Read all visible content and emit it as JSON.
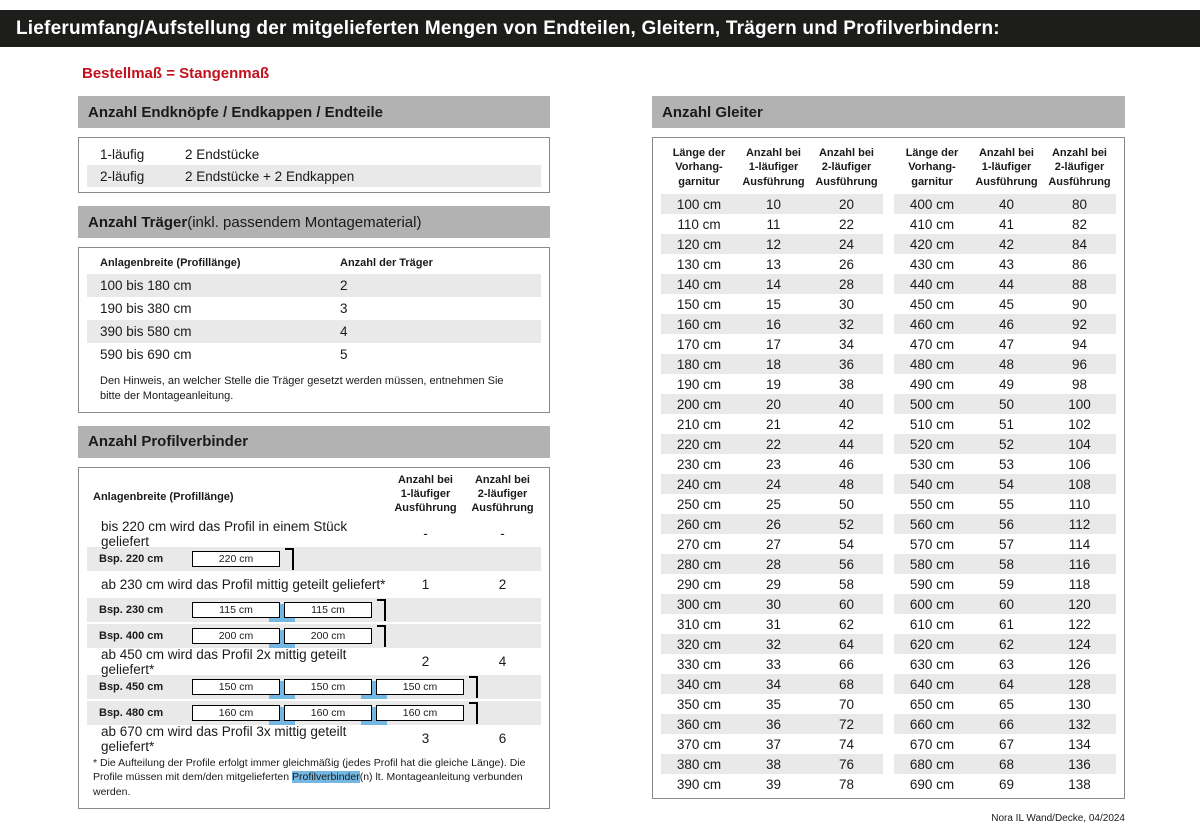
{
  "header": {
    "title": "Lieferumfang/Aufstellung der mitgelieferten Mengen von Endteilen, Gleitern, Trägern und Profilverbindern:",
    "subtitle": "Bestellmaß = Stangenmaß"
  },
  "endteile": {
    "title": "Anzahl Endknöpfe / Endkappen / Endteile",
    "rows": [
      {
        "label": "1-läufig",
        "value": "2 Endstücke"
      },
      {
        "label": "2-läufig",
        "value": "2 Endstücke + 2 Endkappen"
      }
    ]
  },
  "traeger": {
    "title_bold": "Anzahl Träger",
    "title_rest": " (inkl. passendem Montagematerial)",
    "col_width": "Anlagenbreite (Profillänge)",
    "col_count": "Anzahl der Träger",
    "rows": [
      {
        "range": "100 bis 180 cm",
        "count": "2"
      },
      {
        "range": "190 bis 380 cm",
        "count": "3"
      },
      {
        "range": "390 bis 580 cm",
        "count": "4"
      },
      {
        "range": "590 bis 690 cm",
        "count": "5"
      }
    ],
    "note": "Den Hinweis, an welcher Stelle die Träger gesetzt werden müssen, entnehmen Sie bitte der Montageanleitung."
  },
  "profilverbinder": {
    "title": "Anzahl Profilverbinder",
    "col_width": "Anlagenbreite (Profillänge)",
    "col_1laeufig": "Anzahl bei\n1-läufiger\nAusführung",
    "col_2laeufig": "Anzahl bei\n2-läufiger\nAusführung",
    "groups": [
      {
        "text": "bis 220 cm wird das Profil in einem Stück geliefert",
        "count1": "-",
        "count2": "-",
        "examples": [
          {
            "label": "Bsp. 220 cm",
            "segments": [
              "220 cm"
            ]
          }
        ]
      },
      {
        "text": "ab 230 cm wird das Profil mittig geteilt geliefert*",
        "count1": "1",
        "count2": "2",
        "examples": [
          {
            "label": "Bsp. 230 cm",
            "segments": [
              "115 cm",
              "115 cm"
            ]
          },
          {
            "label": "Bsp. 400 cm",
            "segments": [
              "200 cm",
              "200 cm"
            ]
          }
        ]
      },
      {
        "text": "ab 450 cm wird das Profil 2x mittig geteilt geliefert*",
        "count1": "2",
        "count2": "4",
        "examples": [
          {
            "label": "Bsp. 450 cm",
            "segments": [
              "150 cm",
              "150 cm",
              "150 cm"
            ]
          },
          {
            "label": "Bsp. 480 cm",
            "segments": [
              "160 cm",
              "160 cm",
              "160 cm"
            ]
          }
        ]
      },
      {
        "text": "ab 670 cm wird das Profil 3x mittig geteilt geliefert*",
        "count1": "3",
        "count2": "6",
        "examples": []
      }
    ],
    "footnote": {
      "before": "* Die Aufteilung der Profile erfolgt immer gleichmäßig (jedes Profil hat die gleiche Länge). Die Profile müssen mit dem/den mitgelieferten ",
      "highlight": "Profilverbinder",
      "after": "(n) lt. Montageanleitung verbunden werden."
    }
  },
  "gleiter": {
    "title": "Anzahl Gleiter",
    "headers": {
      "length": "Länge der\nVorhang-\ngarnitur",
      "one": "Anzahl bei\n1-läufiger\nAusführung",
      "two": "Anzahl bei\n2-läufiger\nAusführung"
    },
    "left_rows": [
      [
        "100 cm",
        "10",
        "20"
      ],
      [
        "110 cm",
        "11",
        "22"
      ],
      [
        "120 cm",
        "12",
        "24"
      ],
      [
        "130 cm",
        "13",
        "26"
      ],
      [
        "140 cm",
        "14",
        "28"
      ],
      [
        "150 cm",
        "15",
        "30"
      ],
      [
        "160 cm",
        "16",
        "32"
      ],
      [
        "170 cm",
        "17",
        "34"
      ],
      [
        "180 cm",
        "18",
        "36"
      ],
      [
        "190 cm",
        "19",
        "38"
      ],
      [
        "200 cm",
        "20",
        "40"
      ],
      [
        "210 cm",
        "21",
        "42"
      ],
      [
        "220 cm",
        "22",
        "44"
      ],
      [
        "230 cm",
        "23",
        "46"
      ],
      [
        "240 cm",
        "24",
        "48"
      ],
      [
        "250 cm",
        "25",
        "50"
      ],
      [
        "260 cm",
        "26",
        "52"
      ],
      [
        "270 cm",
        "27",
        "54"
      ],
      [
        "280 cm",
        "28",
        "56"
      ],
      [
        "290 cm",
        "29",
        "58"
      ],
      [
        "300 cm",
        "30",
        "60"
      ],
      [
        "310 cm",
        "31",
        "62"
      ],
      [
        "320 cm",
        "32",
        "64"
      ],
      [
        "330 cm",
        "33",
        "66"
      ],
      [
        "340 cm",
        "34",
        "68"
      ],
      [
        "350 cm",
        "35",
        "70"
      ],
      [
        "360 cm",
        "36",
        "72"
      ],
      [
        "370 cm",
        "37",
        "74"
      ],
      [
        "380 cm",
        "38",
        "76"
      ],
      [
        "390 cm",
        "39",
        "78"
      ]
    ],
    "right_rows": [
      [
        "400 cm",
        "40",
        "80"
      ],
      [
        "410 cm",
        "41",
        "82"
      ],
      [
        "420 cm",
        "42",
        "84"
      ],
      [
        "430 cm",
        "43",
        "86"
      ],
      [
        "440 cm",
        "44",
        "88"
      ],
      [
        "450 cm",
        "45",
        "90"
      ],
      [
        "460 cm",
        "46",
        "92"
      ],
      [
        "470 cm",
        "47",
        "94"
      ],
      [
        "480 cm",
        "48",
        "96"
      ],
      [
        "490 cm",
        "49",
        "98"
      ],
      [
        "500 cm",
        "50",
        "100"
      ],
      [
        "510 cm",
        "51",
        "102"
      ],
      [
        "520 cm",
        "52",
        "104"
      ],
      [
        "530 cm",
        "53",
        "106"
      ],
      [
        "540 cm",
        "54",
        "108"
      ],
      [
        "550 cm",
        "55",
        "110"
      ],
      [
        "560 cm",
        "56",
        "112"
      ],
      [
        "570 cm",
        "57",
        "114"
      ],
      [
        "580 cm",
        "58",
        "116"
      ],
      [
        "590 cm",
        "59",
        "118"
      ],
      [
        "600 cm",
        "60",
        "120"
      ],
      [
        "610 cm",
        "61",
        "122"
      ],
      [
        "620 cm",
        "62",
        "124"
      ],
      [
        "630 cm",
        "63",
        "126"
      ],
      [
        "640 cm",
        "64",
        "128"
      ],
      [
        "650 cm",
        "65",
        "130"
      ],
      [
        "660 cm",
        "66",
        "132"
      ],
      [
        "670 cm",
        "67",
        "134"
      ],
      [
        "680 cm",
        "68",
        "136"
      ],
      [
        "690 cm",
        "69",
        "138"
      ]
    ]
  },
  "footer": "Nora IL Wand/Decke, 04/2024",
  "colors": {
    "header_bg": "#1d1d1b",
    "accent_red": "#c3101c",
    "section_bg": "#b2b2b2",
    "stripe": "#e9e9e9",
    "connector_blue": "#74b7e3"
  }
}
